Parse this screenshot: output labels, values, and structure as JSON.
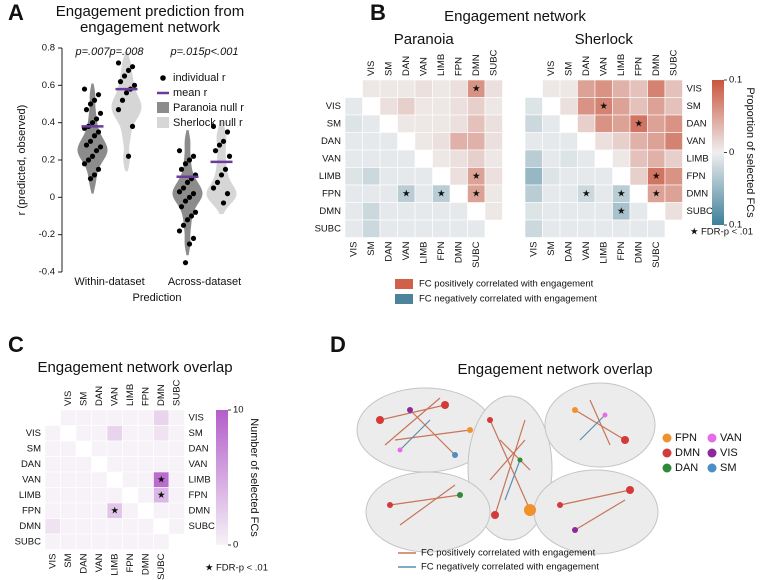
{
  "chart_data": [
    {
      "panel": "A",
      "type": "violin",
      "title": [
        "Engagement prediction from",
        "engagement network"
      ],
      "x_label": "Prediction",
      "y_label": "r (predicted, observed)",
      "categories": [
        "Within-dataset",
        "Across-dataset"
      ],
      "ylim": [
        -0.4,
        0.8
      ],
      "yticks": [
        -0.4,
        -0.2,
        0,
        0.2,
        0.4,
        0.6,
        0.8
      ],
      "individual_label": "individual r",
      "mean_label": "mean r",
      "mean_color": "#6a3d9a",
      "point_color": "#000000",
      "series": [
        {
          "name": "Paranoia null r",
          "color": "#8c8c8c",
          "p_labels": [
            "p=.007",
            "p=.015"
          ],
          "mean": [
            0.38,
            0.11
          ],
          "null": [
            [
              0.08,
              0.15,
              0.2,
              0.22,
              0.24,
              0.25,
              0.26,
              0.28,
              0.3,
              0.33,
              0.38,
              0.45,
              0.55
            ],
            [
              -0.25,
              -0.15,
              -0.08,
              -0.03,
              0,
              0.01,
              0.02,
              0.03,
              0.05,
              0.08,
              0.12,
              0.2,
              0.3
            ]
          ],
          "individual": [
            [
              0.58,
              0.55,
              0.52,
              0.5,
              0.47,
              0.45,
              0.42,
              0.4,
              0.38,
              0.37,
              0.35,
              0.33,
              0.3,
              0.28,
              0.27,
              0.25,
              0.22,
              0.2,
              0.18,
              0.15,
              0.12,
              0.1
            ],
            [
              0.25,
              0.22,
              0.2,
              0.18,
              0.15,
              0.12,
              0.1,
              0.08,
              0.05,
              0.03,
              0.02,
              0,
              -0.02,
              -0.05,
              -0.08,
              -0.1,
              -0.12,
              -0.15,
              -0.18,
              -0.22,
              -0.25,
              -0.35
            ]
          ]
        },
        {
          "name": "Sherlock null r",
          "color": "#d6d6d6",
          "p_labels": [
            "p=.008",
            "p<.001"
          ],
          "mean": [
            0.58,
            0.19
          ],
          "null": [
            [
              0.2,
              0.32,
              0.4,
              0.44,
              0.46,
              0.48,
              0.5,
              0.52,
              0.55,
              0.6,
              0.65,
              0.72
            ],
            [
              -0.03,
              0,
              0.01,
              0.02,
              0.03,
              0.05,
              0.1,
              0.15,
              0.22,
              0.3,
              0.35
            ]
          ],
          "individual": [
            [
              0.72,
              0.7,
              0.68,
              0.65,
              0.62,
              0.6,
              0.58,
              0.56,
              0.52,
              0.47,
              0.38,
              0.22
            ],
            [
              0.38,
              0.35,
              0.3,
              0.28,
              0.25,
              0.22,
              0.15,
              0.12,
              0.08,
              0.05,
              0.02,
              -0.03
            ]
          ]
        }
      ]
    },
    {
      "panel": "B",
      "type": "heatmap",
      "title": "Engagement network",
      "labels": [
        "VIS",
        "SM",
        "DAN",
        "VAN",
        "LIMB",
        "FPN",
        "DMN",
        "SUBC"
      ],
      "star_symbol": "★",
      "note": "FDR-p < .01",
      "colorbar": {
        "label": "Proportion of selected FCs",
        "lim": [
          -0.1,
          0.1
        ],
        "ticks": [
          {
            "value": -0.1,
            "label": "0.1"
          },
          0,
          0.1
        ],
        "colors": [
          "#3d7f99",
          "#efefef",
          "#c9553d"
        ]
      },
      "legend": [
        {
          "name": "FC positively correlated with engagement",
          "color": "#d0604a"
        },
        {
          "name": "FC negatively correlated with engagement",
          "color": "#4e8499"
        }
      ],
      "matrices": [
        {
          "name": "Paranoia",
          "upper": [
            [
              0.005,
              0.005,
              0.005,
              0.01,
              0.005,
              0.01,
              0.06,
              0.01
            ],
            [
              null,
              0.01,
              0.02,
              0.005,
              0.005,
              0.01,
              0.02,
              0.005
            ],
            [
              null,
              null,
              0.005,
              0.005,
              0.005,
              0.01,
              0.03,
              0.01
            ],
            [
              null,
              null,
              null,
              0.005,
              0.01,
              0.04,
              0.04,
              0.01
            ],
            [
              null,
              null,
              null,
              null,
              0.005,
              0.01,
              0.02,
              0.005
            ],
            [
              null,
              null,
              null,
              null,
              null,
              0.01,
              0.05,
              0.01
            ],
            [
              null,
              null,
              null,
              null,
              null,
              null,
              0.05,
              0.005
            ],
            [
              null,
              null,
              null,
              null,
              null,
              null,
              null,
              0.005
            ]
          ],
          "lower": [
            [
              -0.005,
              null,
              null,
              null,
              null,
              null,
              null,
              null
            ],
            [
              -0.01,
              -0.005,
              null,
              null,
              null,
              null,
              null,
              null
            ],
            [
              -0.005,
              -0.005,
              -0.005,
              null,
              null,
              null,
              null,
              null
            ],
            [
              -0.005,
              -0.005,
              -0.005,
              -0.005,
              null,
              null,
              null,
              null
            ],
            [
              -0.01,
              -0.02,
              -0.005,
              -0.005,
              -0.005,
              null,
              null,
              null
            ],
            [
              -0.005,
              -0.005,
              -0.005,
              -0.03,
              -0.005,
              -0.03,
              null,
              null
            ],
            [
              -0.005,
              -0.02,
              -0.005,
              -0.005,
              -0.005,
              -0.005,
              -0.005,
              null
            ],
            [
              -0.005,
              -0.02,
              -0.005,
              -0.005,
              -0.005,
              -0.005,
              -0.005,
              -0.005
            ]
          ],
          "upper_stars": [
            [
              0,
              6
            ],
            [
              5,
              6
            ],
            [
              6,
              6
            ]
          ],
          "lower_stars": [
            [
              5,
              3
            ],
            [
              5,
              5
            ]
          ]
        },
        {
          "name": "Sherlock",
          "upper": [
            [
              0.005,
              0.005,
              0.05,
              0.06,
              0.04,
              0.03,
              0.07,
              0.03
            ],
            [
              null,
              0.01,
              0.06,
              0.07,
              0.05,
              0.03,
              0.05,
              0.03
            ],
            [
              null,
              null,
              0.02,
              0.06,
              0.05,
              0.08,
              0.05,
              0.06
            ],
            [
              null,
              null,
              null,
              0.01,
              0.02,
              0.04,
              0.05,
              0.07
            ],
            [
              null,
              null,
              null,
              null,
              0.005,
              0.03,
              0.04,
              0.02
            ],
            [
              null,
              null,
              null,
              null,
              null,
              0.02,
              0.08,
              0.06
            ],
            [
              null,
              null,
              null,
              null,
              null,
              null,
              0.05,
              0.05
            ],
            [
              null,
              null,
              null,
              null,
              null,
              null,
              null,
              0.01
            ]
          ],
          "lower": [
            [
              -0.01,
              null,
              null,
              null,
              null,
              null,
              null,
              null
            ],
            [
              -0.02,
              -0.005,
              null,
              null,
              null,
              null,
              null,
              null
            ],
            [
              -0.005,
              -0.005,
              -0.005,
              null,
              null,
              null,
              null,
              null
            ],
            [
              -0.03,
              -0.005,
              -0.01,
              -0.005,
              null,
              null,
              null,
              null
            ],
            [
              -0.05,
              -0.01,
              -0.005,
              -0.005,
              -0.005,
              null,
              null,
              null
            ],
            [
              -0.03,
              -0.005,
              -0.005,
              -0.02,
              -0.005,
              -0.03,
              null,
              null
            ],
            [
              -0.01,
              -0.005,
              -0.005,
              -0.005,
              -0.005,
              -0.04,
              -0.005,
              null
            ],
            [
              -0.02,
              -0.005,
              -0.005,
              -0.005,
              -0.005,
              -0.005,
              -0.005,
              -0.005
            ]
          ],
          "upper_stars": [
            [
              1,
              3
            ],
            [
              2,
              5
            ],
            [
              5,
              6
            ],
            [
              6,
              6
            ]
          ],
          "lower_stars": [
            [
              5,
              3
            ],
            [
              5,
              5
            ],
            [
              6,
              5
            ]
          ]
        }
      ]
    },
    {
      "panel": "C",
      "type": "heatmap",
      "title": "Engagement network overlap",
      "labels": [
        "VIS",
        "SM",
        "DAN",
        "VAN",
        "LIMB",
        "FPN",
        "DMN",
        "SUBC"
      ],
      "star_symbol": "★",
      "note": "FDR-p < .01",
      "colorbar": {
        "label": "Number of selected FCs",
        "lim": [
          0,
          10
        ],
        "ticks": [
          0,
          10
        ],
        "colors": [
          "#f6f2f7",
          "#b35ec9"
        ]
      },
      "matrices": [
        {
          "upper": [
            [
              0,
              0,
              0,
              0,
              0,
              0,
              2,
              0
            ],
            [
              null,
              0,
              0,
              2,
              0,
              0,
              1,
              0
            ],
            [
              null,
              null,
              0,
              0,
              0,
              0,
              0,
              0
            ],
            [
              null,
              null,
              null,
              0,
              0,
              0,
              0,
              0
            ],
            [
              null,
              null,
              null,
              null,
              0,
              0,
              9,
              0
            ],
            [
              null,
              null,
              null,
              null,
              null,
              0,
              4,
              0
            ],
            [
              null,
              null,
              null,
              null,
              null,
              null,
              0,
              0
            ],
            [
              null,
              null,
              null,
              null,
              null,
              null,
              null,
              0
            ]
          ],
          "lower": [
            [
              0,
              null,
              null,
              null,
              null,
              null,
              null,
              null
            ],
            [
              0,
              0,
              null,
              null,
              null,
              null,
              null,
              null
            ],
            [
              0,
              0,
              0,
              null,
              null,
              null,
              null,
              null
            ],
            [
              0,
              0,
              0,
              0,
              null,
              null,
              null,
              null
            ],
            [
              0,
              0,
              0,
              0,
              0,
              null,
              null,
              null
            ],
            [
              0,
              0,
              0,
              0,
              3,
              0,
              null,
              null
            ],
            [
              1,
              0,
              0,
              0,
              0,
              0,
              0,
              null
            ],
            [
              0,
              0,
              0,
              0,
              0,
              0,
              0,
              0
            ]
          ],
          "upper_stars": [
            [
              4,
              6
            ],
            [
              5,
              6
            ]
          ],
          "lower_stars": [
            [
              5,
              4
            ]
          ]
        }
      ]
    }
  ],
  "panel_d": {
    "panel": "D",
    "title": "Engagement network overlap",
    "node_legend": [
      {
        "name": "FPN",
        "color": "#f0922b"
      },
      {
        "name": "VAN",
        "color": "#e56ee8"
      },
      {
        "name": "DMN",
        "color": "#d43a3a"
      },
      {
        "name": "VIS",
        "color": "#8b2a9b"
      },
      {
        "name": "DAN",
        "color": "#2e8b3a"
      },
      {
        "name": "SM",
        "color": "#4a8fc7"
      }
    ],
    "edge_legend": [
      {
        "name": "FC positively correlated with engagement",
        "color": "#c8755a"
      },
      {
        "name": "FC negatively correlated with engagement",
        "color": "#5b8fb0"
      }
    ]
  }
}
